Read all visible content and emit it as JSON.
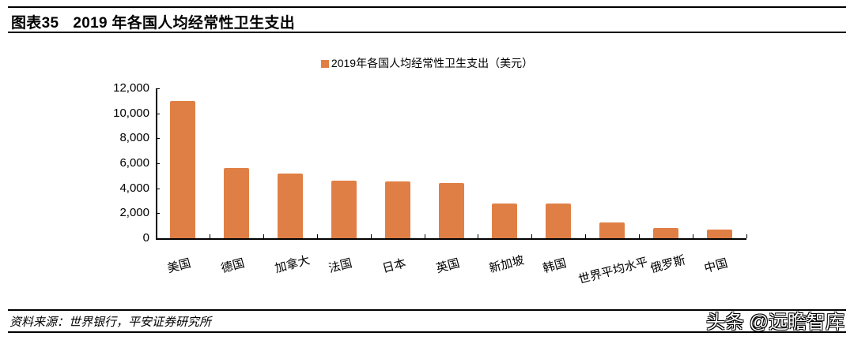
{
  "header": {
    "figure_number": "图表35",
    "title": "2019 年各国人均经常性卫生支出"
  },
  "legend": {
    "label": "2019年各国人均经常性卫生支出（美元）",
    "color": "#E07F45"
  },
  "footer": {
    "source": "资料来源：世界银行，平安证券研究所",
    "watermark": "头条 @远瞻智库"
  },
  "y_ticks": [
    "12,000",
    "10,000",
    "8,000",
    "6,000",
    "4,000",
    "2,000",
    "0"
  ],
  "chart_data": {
    "type": "bar",
    "title": "2019 年各国人均经常性卫生支出",
    "xlabel": "",
    "ylabel": "",
    "ylim": [
      0,
      12000
    ],
    "y_tick_values": [
      0,
      2000,
      4000,
      6000,
      8000,
      10000,
      12000
    ],
    "grid": false,
    "legend_position": "top",
    "categories": [
      "美国",
      "德国",
      "加拿大",
      "法国",
      "日本",
      "英国",
      "新加坡",
      "韩国",
      "世界平均水平",
      "俄罗斯",
      "中国"
    ],
    "series": [
      {
        "name": "2019年各国人均经常性卫生支出（美元）",
        "color": "#E07F45",
        "values": [
          11000,
          5620,
          5210,
          4610,
          4520,
          4420,
          2810,
          2810,
          1290,
          790,
          700
        ]
      }
    ]
  }
}
